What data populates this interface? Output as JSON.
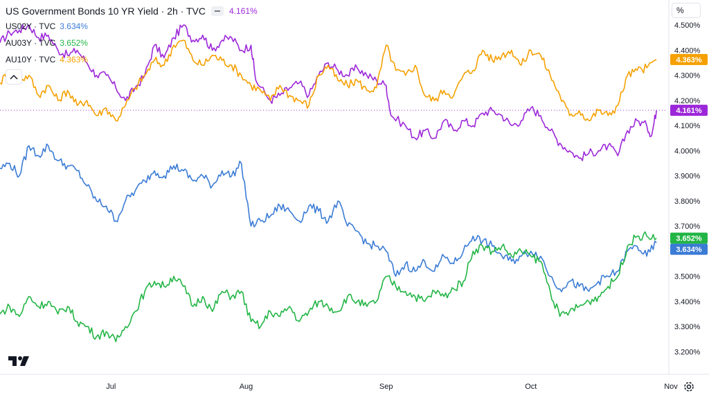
{
  "legend": {
    "title": "US Government Bonds 10 YR Yield · 2h · TVC",
    "title_value": "4.161%",
    "items": [
      {
        "label": "US02Y · TVC",
        "value": "3.634%"
      },
      {
        "label": "AU03Y · TVC",
        "value": "3.652%"
      },
      {
        "label": "AU10Y · TVC",
        "value": "4.363%"
      }
    ]
  },
  "scale_button": "%",
  "colors": {
    "US10Y": "#9c27d9",
    "US02Y": "#3a7bd5",
    "AU03Y": "#22b545",
    "AU10Y": "#f5a000",
    "axis_text": "#131722",
    "grid": "#f0f3fa"
  },
  "icons": {
    "logo": "tradingview-logo-icon",
    "settings": "gear-icon",
    "collapse": "chevron-up-icon"
  },
  "chart_data": {
    "type": "line",
    "xlabel": "",
    "ylabel": "",
    "x_ticks": [
      "Jul",
      "Aug",
      "Sep",
      "Oct",
      "Nov"
    ],
    "x_range_days": [
      0,
      138
    ],
    "x_tick_days": [
      23,
      51,
      80,
      110,
      139
    ],
    "y_ticks": [
      "3.200%",
      "3.300%",
      "3.400%",
      "3.500%",
      "3.600%",
      "3.700%",
      "3.800%",
      "3.900%",
      "4.000%",
      "4.100%",
      "4.200%",
      "4.300%",
      "4.400%",
      "4.500%"
    ],
    "ylim": [
      3.11,
      4.6
    ],
    "grid": false,
    "current_line": 4.161,
    "series": [
      {
        "key": "US10Y",
        "name": "US Government Bonds 10 YR Yield",
        "last_label": "4.161%",
        "points": [
          [
            0,
            4.43
          ],
          [
            2,
            4.47
          ],
          [
            4,
            4.48
          ],
          [
            6,
            4.5
          ],
          [
            8,
            4.45
          ],
          [
            10,
            4.46
          ],
          [
            12,
            4.4
          ],
          [
            14,
            4.38
          ],
          [
            16,
            4.4
          ],
          [
            18,
            4.35
          ],
          [
            20,
            4.3
          ],
          [
            22,
            4.3
          ],
          [
            24,
            4.25
          ],
          [
            26,
            4.2
          ],
          [
            28,
            4.25
          ],
          [
            30,
            4.3
          ],
          [
            32,
            4.42
          ],
          [
            34,
            4.37
          ],
          [
            36,
            4.45
          ],
          [
            38,
            4.5
          ],
          [
            40,
            4.44
          ],
          [
            42,
            4.46
          ],
          [
            44,
            4.4
          ],
          [
            46,
            4.44
          ],
          [
            48,
            4.45
          ],
          [
            50,
            4.4
          ],
          [
            52,
            4.42
          ],
          [
            53,
            4.28
          ],
          [
            56,
            4.2
          ],
          [
            58,
            4.22
          ],
          [
            60,
            4.25
          ],
          [
            62,
            4.27
          ],
          [
            64,
            4.22
          ],
          [
            66,
            4.3
          ],
          [
            68,
            4.35
          ],
          [
            70,
            4.32
          ],
          [
            72,
            4.3
          ],
          [
            74,
            4.33
          ],
          [
            76,
            4.3
          ],
          [
            78,
            4.28
          ],
          [
            80,
            4.26
          ],
          [
            81,
            4.14
          ],
          [
            84,
            4.1
          ],
          [
            86,
            4.05
          ],
          [
            88,
            4.08
          ],
          [
            90,
            4.05
          ],
          [
            92,
            4.12
          ],
          [
            94,
            4.08
          ],
          [
            96,
            4.12
          ],
          [
            98,
            4.1
          ],
          [
            100,
            4.15
          ],
          [
            102,
            4.16
          ],
          [
            104,
            4.14
          ],
          [
            106,
            4.1
          ],
          [
            108,
            4.12
          ],
          [
            110,
            4.17
          ],
          [
            112,
            4.14
          ],
          [
            114,
            4.08
          ],
          [
            116,
            4.03
          ],
          [
            118,
            4.0
          ],
          [
            120,
            3.97
          ],
          [
            122,
            3.99
          ],
          [
            124,
            4.0
          ],
          [
            126,
            4.02
          ],
          [
            128,
            3.98
          ],
          [
            130,
            4.08
          ],
          [
            132,
            4.12
          ],
          [
            134,
            4.1
          ],
          [
            135,
            4.06
          ],
          [
            136,
            4.161
          ]
        ]
      },
      {
        "key": "AU10Y",
        "name": "AU10Y",
        "last_label": "4.363%",
        "points": [
          [
            0,
            4.27
          ],
          [
            2,
            4.32
          ],
          [
            4,
            4.28
          ],
          [
            6,
            4.3
          ],
          [
            8,
            4.22
          ],
          [
            10,
            4.26
          ],
          [
            12,
            4.2
          ],
          [
            14,
            4.24
          ],
          [
            16,
            4.18
          ],
          [
            18,
            4.2
          ],
          [
            20,
            4.14
          ],
          [
            22,
            4.17
          ],
          [
            24,
            4.12
          ],
          [
            26,
            4.18
          ],
          [
            28,
            4.25
          ],
          [
            30,
            4.3
          ],
          [
            32,
            4.36
          ],
          [
            34,
            4.34
          ],
          [
            36,
            4.42
          ],
          [
            38,
            4.44
          ],
          [
            40,
            4.36
          ],
          [
            42,
            4.34
          ],
          [
            44,
            4.38
          ],
          [
            46,
            4.36
          ],
          [
            48,
            4.34
          ],
          [
            50,
            4.3
          ],
          [
            52,
            4.26
          ],
          [
            54,
            4.24
          ],
          [
            56,
            4.2
          ],
          [
            58,
            4.26
          ],
          [
            60,
            4.22
          ],
          [
            62,
            4.2
          ],
          [
            64,
            4.18
          ],
          [
            66,
            4.3
          ],
          [
            68,
            4.34
          ],
          [
            70,
            4.28
          ],
          [
            72,
            4.26
          ],
          [
            74,
            4.28
          ],
          [
            76,
            4.24
          ],
          [
            78,
            4.25
          ],
          [
            80,
            4.42
          ],
          [
            82,
            4.32
          ],
          [
            84,
            4.3
          ],
          [
            86,
            4.34
          ],
          [
            88,
            4.22
          ],
          [
            90,
            4.2
          ],
          [
            92,
            4.24
          ],
          [
            94,
            4.22
          ],
          [
            96,
            4.3
          ],
          [
            98,
            4.32
          ],
          [
            100,
            4.4
          ],
          [
            102,
            4.36
          ],
          [
            104,
            4.38
          ],
          [
            106,
            4.4
          ],
          [
            108,
            4.34
          ],
          [
            110,
            4.4
          ],
          [
            112,
            4.38
          ],
          [
            114,
            4.3
          ],
          [
            116,
            4.22
          ],
          [
            118,
            4.14
          ],
          [
            120,
            4.16
          ],
          [
            122,
            4.12
          ],
          [
            124,
            4.16
          ],
          [
            126,
            4.14
          ],
          [
            128,
            4.18
          ],
          [
            130,
            4.3
          ],
          [
            132,
            4.32
          ],
          [
            134,
            4.33
          ],
          [
            136,
            4.363
          ]
        ]
      },
      {
        "key": "US02Y",
        "name": "US02Y · TVC",
        "last_label": "3.634%",
        "points": [
          [
            0,
            3.93
          ],
          [
            2,
            3.95
          ],
          [
            4,
            3.9
          ],
          [
            6,
            4.02
          ],
          [
            8,
            3.98
          ],
          [
            10,
            4.02
          ],
          [
            12,
            3.96
          ],
          [
            14,
            3.94
          ],
          [
            16,
            3.92
          ],
          [
            18,
            3.86
          ],
          [
            20,
            3.8
          ],
          [
            22,
            3.78
          ],
          [
            24,
            3.72
          ],
          [
            26,
            3.8
          ],
          [
            28,
            3.84
          ],
          [
            30,
            3.88
          ],
          [
            32,
            3.92
          ],
          [
            34,
            3.9
          ],
          [
            36,
            3.94
          ],
          [
            38,
            3.92
          ],
          [
            40,
            3.88
          ],
          [
            42,
            3.9
          ],
          [
            44,
            3.86
          ],
          [
            46,
            3.92
          ],
          [
            48,
            3.9
          ],
          [
            50,
            3.95
          ],
          [
            52,
            3.7
          ],
          [
            54,
            3.72
          ],
          [
            56,
            3.74
          ],
          [
            58,
            3.78
          ],
          [
            60,
            3.76
          ],
          [
            62,
            3.72
          ],
          [
            64,
            3.78
          ],
          [
            66,
            3.76
          ],
          [
            68,
            3.72
          ],
          [
            70,
            3.8
          ],
          [
            72,
            3.7
          ],
          [
            74,
            3.68
          ],
          [
            76,
            3.63
          ],
          [
            78,
            3.62
          ],
          [
            80,
            3.6
          ],
          [
            82,
            3.5
          ],
          [
            84,
            3.55
          ],
          [
            86,
            3.52
          ],
          [
            88,
            3.56
          ],
          [
            90,
            3.52
          ],
          [
            92,
            3.58
          ],
          [
            94,
            3.55
          ],
          [
            96,
            3.6
          ],
          [
            98,
            3.66
          ],
          [
            100,
            3.64
          ],
          [
            102,
            3.62
          ],
          [
            104,
            3.58
          ],
          [
            106,
            3.56
          ],
          [
            108,
            3.58
          ],
          [
            110,
            3.6
          ],
          [
            112,
            3.58
          ],
          [
            114,
            3.5
          ],
          [
            116,
            3.45
          ],
          [
            118,
            3.48
          ],
          [
            120,
            3.46
          ],
          [
            122,
            3.44
          ],
          [
            124,
            3.48
          ],
          [
            126,
            3.5
          ],
          [
            128,
            3.52
          ],
          [
            130,
            3.6
          ],
          [
            132,
            3.62
          ],
          [
            134,
            3.58
          ],
          [
            136,
            3.634
          ]
        ]
      },
      {
        "key": "AU03Y",
        "name": "AU03Y · TVC",
        "last_label": "3.652%",
        "points": [
          [
            0,
            3.35
          ],
          [
            2,
            3.38
          ],
          [
            4,
            3.34
          ],
          [
            6,
            3.42
          ],
          [
            8,
            3.38
          ],
          [
            10,
            3.4
          ],
          [
            12,
            3.35
          ],
          [
            14,
            3.38
          ],
          [
            16,
            3.32
          ],
          [
            18,
            3.3
          ],
          [
            20,
            3.26
          ],
          [
            22,
            3.28
          ],
          [
            24,
            3.24
          ],
          [
            26,
            3.3
          ],
          [
            28,
            3.36
          ],
          [
            30,
            3.44
          ],
          [
            32,
            3.48
          ],
          [
            34,
            3.46
          ],
          [
            36,
            3.5
          ],
          [
            38,
            3.46
          ],
          [
            40,
            3.38
          ],
          [
            42,
            3.42
          ],
          [
            44,
            3.36
          ],
          [
            46,
            3.44
          ],
          [
            48,
            3.42
          ],
          [
            50,
            3.44
          ],
          [
            52,
            3.32
          ],
          [
            54,
            3.3
          ],
          [
            56,
            3.36
          ],
          [
            58,
            3.34
          ],
          [
            60,
            3.38
          ],
          [
            62,
            3.32
          ],
          [
            64,
            3.36
          ],
          [
            66,
            3.4
          ],
          [
            68,
            3.38
          ],
          [
            70,
            3.36
          ],
          [
            72,
            3.42
          ],
          [
            74,
            3.4
          ],
          [
            76,
            3.38
          ],
          [
            78,
            3.4
          ],
          [
            80,
            3.5
          ],
          [
            82,
            3.46
          ],
          [
            84,
            3.44
          ],
          [
            86,
            3.42
          ],
          [
            88,
            3.4
          ],
          [
            90,
            3.44
          ],
          [
            92,
            3.42
          ],
          [
            94,
            3.45
          ],
          [
            96,
            3.48
          ],
          [
            98,
            3.6
          ],
          [
            100,
            3.62
          ],
          [
            102,
            3.6
          ],
          [
            104,
            3.62
          ],
          [
            106,
            3.58
          ],
          [
            108,
            3.6
          ],
          [
            110,
            3.58
          ],
          [
            112,
            3.56
          ],
          [
            114,
            3.44
          ],
          [
            116,
            3.34
          ],
          [
            118,
            3.36
          ],
          [
            120,
            3.38
          ],
          [
            122,
            3.4
          ],
          [
            124,
            3.42
          ],
          [
            126,
            3.46
          ],
          [
            128,
            3.5
          ],
          [
            130,
            3.62
          ],
          [
            132,
            3.66
          ],
          [
            134,
            3.66
          ],
          [
            136,
            3.652
          ]
        ]
      }
    ]
  }
}
